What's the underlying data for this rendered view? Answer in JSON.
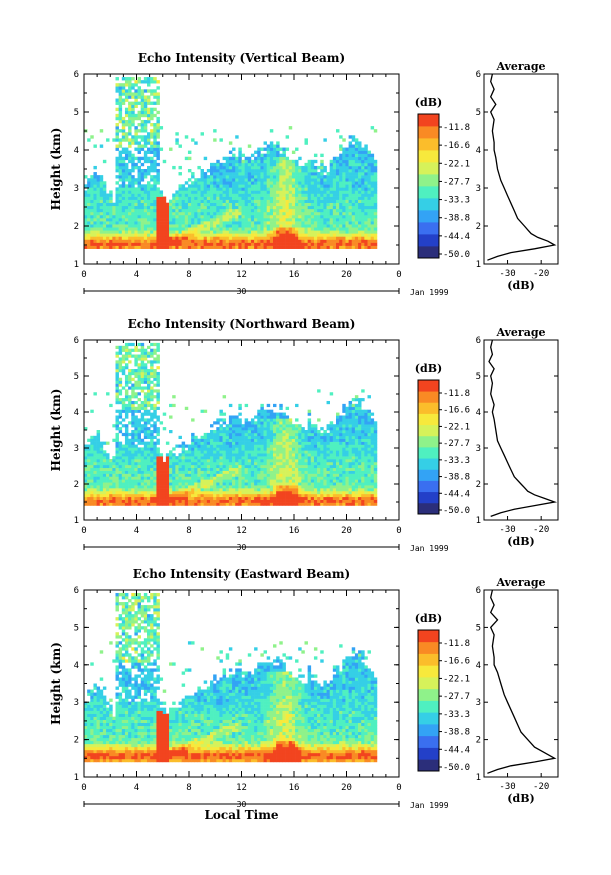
{
  "chart_data": [
    {
      "type": "heatmap",
      "title": "Echo Intensity (Vertical Beam)",
      "ylabel": "Height (km)",
      "xlabel": "",
      "x_ticks": [
        "0",
        "4",
        "8",
        "12",
        "16",
        "20",
        "0"
      ],
      "y_ticks": [
        "1",
        "2",
        "3",
        "4",
        "5",
        "6"
      ],
      "xlim": [
        0,
        24
      ],
      "ylim": [
        1,
        6
      ],
      "date_labels": [
        "30",
        "Jan 1999"
      ],
      "colorbar": {
        "unit": "(dB)",
        "levels": [
          "-11.8",
          "-16.6",
          "-22.1",
          "-27.7",
          "-33.3",
          "-38.8",
          "-44.4",
          "-50.0"
        ]
      },
      "profile": {
        "title": "Average",
        "xlabel": "(dB)",
        "x_ticks": [
          "-30",
          "-20"
        ],
        "y_ticks": [
          "1",
          "2",
          "3",
          "4",
          "5",
          "6"
        ],
        "height_km": [
          1.1,
          1.2,
          1.3,
          1.4,
          1.5,
          1.6,
          1.7,
          1.8,
          1.9,
          2.0,
          2.2,
          2.4,
          2.6,
          2.8,
          3.0,
          3.2,
          3.5,
          3.8,
          4.0,
          4.2,
          4.5,
          4.8,
          5.0,
          5.2,
          5.4,
          5.6,
          5.8,
          6.0
        ],
        "value_db": [
          -36,
          -33,
          -29,
          -22,
          -16,
          -18,
          -21,
          -23,
          -24,
          -25,
          -27,
          -28,
          -29,
          -30,
          -31,
          -32,
          -33,
          -33.5,
          -34,
          -34,
          -34.5,
          -34,
          -35,
          -33.5,
          -35,
          -34,
          -35,
          -34.5
        ]
      }
    },
    {
      "type": "heatmap",
      "title": "Echo Intensity (Northward Beam)",
      "ylabel": "Height (km)",
      "xlabel": "",
      "x_ticks": [
        "0",
        "4",
        "8",
        "12",
        "16",
        "20",
        "0"
      ],
      "y_ticks": [
        "1",
        "2",
        "3",
        "4",
        "5",
        "6"
      ],
      "xlim": [
        0,
        24
      ],
      "ylim": [
        1,
        6
      ],
      "date_labels": [
        "30",
        "Jan 1999"
      ],
      "colorbar": {
        "unit": "(dB)",
        "levels": [
          "-11.8",
          "-16.6",
          "-22.1",
          "-27.7",
          "-33.3",
          "-38.8",
          "-44.4",
          "-50.0"
        ]
      },
      "profile": {
        "title": "Average",
        "xlabel": "(dB)",
        "x_ticks": [
          "-30",
          "-20"
        ],
        "y_ticks": [
          "1",
          "2",
          "3",
          "4",
          "5",
          "6"
        ],
        "height_km": [
          1.1,
          1.2,
          1.3,
          1.4,
          1.5,
          1.6,
          1.7,
          1.8,
          1.9,
          2.0,
          2.2,
          2.4,
          2.6,
          2.8,
          3.0,
          3.2,
          3.5,
          3.8,
          4.0,
          4.2,
          4.5,
          4.8,
          5.0,
          5.2,
          5.4,
          5.6,
          5.8,
          6.0
        ],
        "value_db": [
          -35,
          -32,
          -28,
          -22,
          -16,
          -19,
          -22,
          -24,
          -25,
          -26,
          -28,
          -29,
          -30,
          -31,
          -32,
          -33,
          -33.5,
          -34,
          -34.5,
          -34,
          -35,
          -34.5,
          -35,
          -34,
          -35.5,
          -34.5,
          -35,
          -34.5
        ]
      }
    },
    {
      "type": "heatmap",
      "title": "Echo Intensity (Eastward Beam)",
      "ylabel": "Height (km)",
      "xlabel": "Local Time",
      "x_ticks": [
        "0",
        "4",
        "8",
        "12",
        "16",
        "20",
        "0"
      ],
      "y_ticks": [
        "1",
        "2",
        "3",
        "4",
        "5",
        "6"
      ],
      "xlim": [
        0,
        24
      ],
      "ylim": [
        1,
        6
      ],
      "date_labels": [
        "30",
        "Jan 1999"
      ],
      "colorbar": {
        "unit": "(dB)",
        "levels": [
          "-11.8",
          "-16.6",
          "-22.1",
          "-27.7",
          "-33.3",
          "-38.8",
          "-44.4",
          "-50.0"
        ]
      },
      "profile": {
        "title": "Average",
        "xlabel": "(dB)",
        "x_ticks": [
          "-30",
          "-20"
        ],
        "y_ticks": [
          "1",
          "2",
          "3",
          "4",
          "5",
          "6"
        ],
        "height_km": [
          1.1,
          1.2,
          1.3,
          1.4,
          1.5,
          1.6,
          1.7,
          1.8,
          1.9,
          2.0,
          2.2,
          2.4,
          2.6,
          2.8,
          3.0,
          3.2,
          3.5,
          3.8,
          4.0,
          4.2,
          4.5,
          4.8,
          5.0,
          5.2,
          5.4,
          5.6,
          5.8,
          6.0
        ],
        "value_db": [
          -36,
          -33,
          -29,
          -22,
          -16,
          -18,
          -20,
          -22,
          -23,
          -24,
          -26,
          -27,
          -28,
          -29,
          -30,
          -31,
          -32,
          -33,
          -34,
          -34,
          -34.5,
          -34,
          -35,
          -33,
          -35,
          -34,
          -35,
          -34.5
        ]
      }
    }
  ],
  "colors": {
    "scale": [
      "#2b2e7a",
      "#2340c8",
      "#3a6ff0",
      "#33a3f5",
      "#35cfe6",
      "#4ff0c0",
      "#8ff28a",
      "#d6f25a",
      "#f7e93c",
      "#fbbd2b",
      "#f98a24",
      "#f2441f"
    ]
  }
}
